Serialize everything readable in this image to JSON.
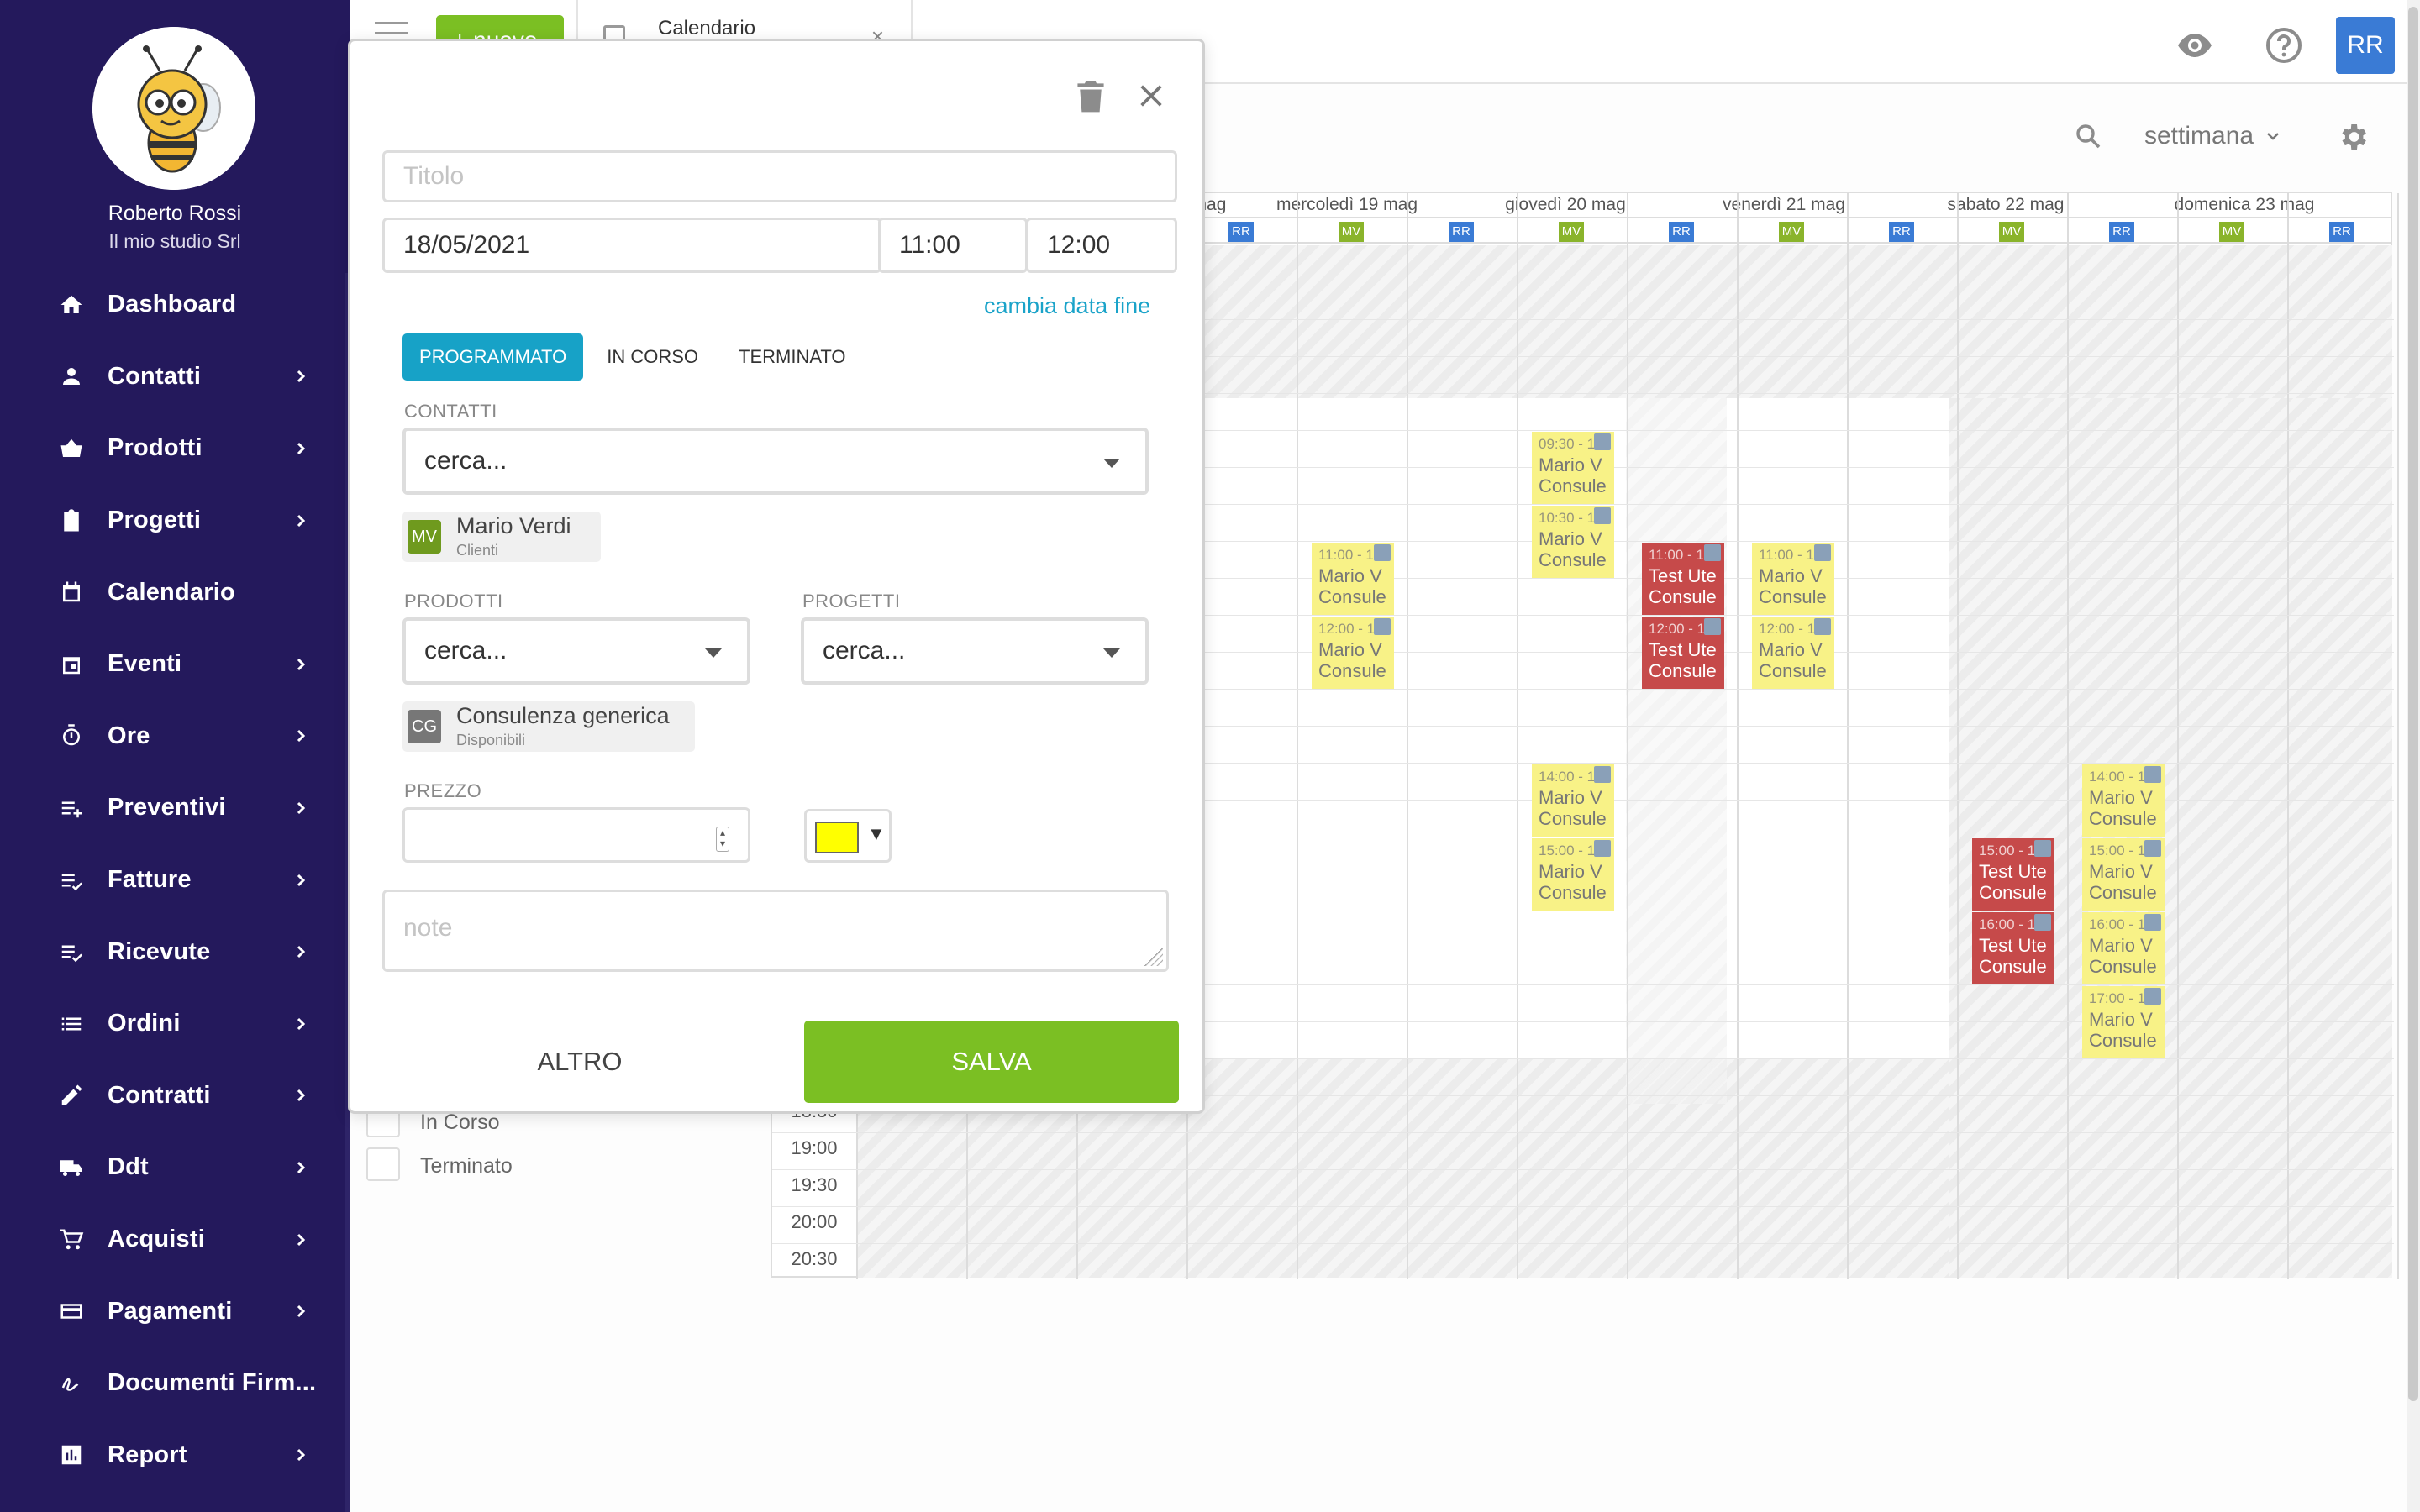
{
  "sidebar": {
    "user_name": "Roberto Rossi",
    "company": "Il mio studio Srl",
    "items": [
      {
        "label": "Dashboard",
        "icon": "home-icon",
        "has_submenu": false
      },
      {
        "label": "Contatti",
        "icon": "person-icon",
        "has_submenu": true
      },
      {
        "label": "Prodotti",
        "icon": "basket-icon",
        "has_submenu": true
      },
      {
        "label": "Progetti",
        "icon": "clipboard-icon",
        "has_submenu": true
      },
      {
        "label": "Calendario",
        "icon": "calendar-icon",
        "has_submenu": false
      },
      {
        "label": "Eventi",
        "icon": "event-icon",
        "has_submenu": true
      },
      {
        "label": "Ore",
        "icon": "timer-icon",
        "has_submenu": true
      },
      {
        "label": "Preventivi",
        "icon": "playlist-add-icon",
        "has_submenu": true
      },
      {
        "label": "Fatture",
        "icon": "playlist-check-icon",
        "has_submenu": true
      },
      {
        "label": "Ricevute",
        "icon": "playlist-check-icon",
        "has_submenu": true
      },
      {
        "label": "Ordini",
        "icon": "list-icon",
        "has_submenu": true
      },
      {
        "label": "Contratti",
        "icon": "pencil-icon",
        "has_submenu": true
      },
      {
        "label": "Ddt",
        "icon": "truck-icon",
        "has_submenu": true
      },
      {
        "label": "Acquisti",
        "icon": "cart-icon",
        "has_submenu": true
      },
      {
        "label": "Pagamenti",
        "icon": "credit-card-icon",
        "has_submenu": true
      },
      {
        "label": "Documenti Firm...",
        "icon": "signature-icon",
        "has_submenu": false
      },
      {
        "label": "Report",
        "icon": "bar-chart-icon",
        "has_submenu": true
      }
    ]
  },
  "topbar": {
    "new_button": "+ nuovo",
    "tab_title": "Calendario",
    "tab_close": "×",
    "avatar": "RR"
  },
  "calendar": {
    "view": "settimana",
    "days": [
      {
        "label": "mag"
      },
      {
        "label": "mercoledì 19 mag"
      },
      {
        "label": "giovedì 20 mag"
      },
      {
        "label": "venerdì 21 mag"
      },
      {
        "label": "sabato 22 mag"
      },
      {
        "label": "domenica 23 mag"
      }
    ],
    "times": [
      "18:30",
      "19:00",
      "19:30",
      "20:00",
      "20:30"
    ],
    "user_tags": [
      "RR",
      "MV"
    ],
    "events": [
      {
        "time": "11:00 - 1",
        "title": "Mario V",
        "sub": "Consule",
        "color": "yellow"
      },
      {
        "time": "12:00 - 1",
        "title": "Mario V",
        "sub": "Consule",
        "color": "yellow"
      },
      {
        "time": "09:30 - 1",
        "title": "Mario V",
        "sub": "Consule",
        "color": "yellow"
      },
      {
        "time": "10:30 - 1",
        "title": "Mario V",
        "sub": "Consule",
        "color": "yellow"
      },
      {
        "time": "14:00 - 1",
        "title": "Mario V",
        "sub": "Consule",
        "color": "yellow"
      },
      {
        "time": "15:00 - 1",
        "title": "Mario V",
        "sub": "Consule",
        "color": "yellow"
      },
      {
        "time": "11:00 - 12",
        "title": "Test Ute",
        "sub": "Consule",
        "color": "red"
      },
      {
        "time": "12:00 - 1",
        "title": "Test Ute",
        "sub": "Consule",
        "color": "red"
      },
      {
        "time": "11:00 - 1",
        "title": "Mario V",
        "sub": "Consule",
        "color": "yellow"
      },
      {
        "time": "12:00 - 1",
        "title": "Mario V",
        "sub": "Consule",
        "color": "yellow"
      },
      {
        "time": "15:00 - 1",
        "title": "Test Ute",
        "sub": "Consule",
        "color": "red"
      },
      {
        "time": "16:00 - 1",
        "title": "Test Ute",
        "sub": "Consule",
        "color": "red"
      },
      {
        "time": "14:00 - 1",
        "title": "Mario V",
        "sub": "Consule",
        "color": "yellow"
      },
      {
        "time": "15:00 - 1",
        "title": "Mario V",
        "sub": "Consule",
        "color": "yellow"
      },
      {
        "time": "16:00 - 1",
        "title": "Mario V",
        "sub": "Consule",
        "color": "yellow"
      },
      {
        "time": "17:00 - 1",
        "title": "Mario V",
        "sub": "Consule",
        "color": "yellow"
      }
    ],
    "status_filters": [
      "In Corso",
      "Terminato"
    ]
  },
  "modal": {
    "title_placeholder": "Titolo",
    "start_date": "18/05/2021",
    "start_time": "11:00",
    "end_time": "12:00",
    "change_end_date": "cambia data fine",
    "status_tabs": [
      {
        "label": "PROGRAMMATO",
        "active": true
      },
      {
        "label": "IN CORSO",
        "active": false
      },
      {
        "label": "TERMINATO",
        "active": false
      }
    ],
    "contacts_label": "CONTATTI",
    "contacts_search": "cerca...",
    "contact_chip": {
      "initials": "MV",
      "name": "Mario Verdi",
      "sub": "Clienti",
      "color": "#6f9a1e"
    },
    "products_label": "PRODOTTI",
    "products_search": "cerca...",
    "projects_label": "PROGETTI",
    "projects_search": "cerca...",
    "product_chip": {
      "initials": "CG",
      "name": "Consulenza generica",
      "sub": "Disponibili",
      "color": "#777777"
    },
    "price_label": "PREZZO",
    "price_value": "",
    "event_color": "#ffff00",
    "notes_placeholder": "note",
    "other_button": "ALTRO",
    "save_button": "SALVA"
  },
  "colors": {
    "sidebar_bg": "#24195c",
    "accent_green": "#7bbf23",
    "accent_blue": "#17a2c7",
    "rr_tag": "#3a7bd5",
    "mv_tag": "#8ab42b",
    "event_yellow": "#f8f287",
    "event_red": "#c64a4a"
  }
}
